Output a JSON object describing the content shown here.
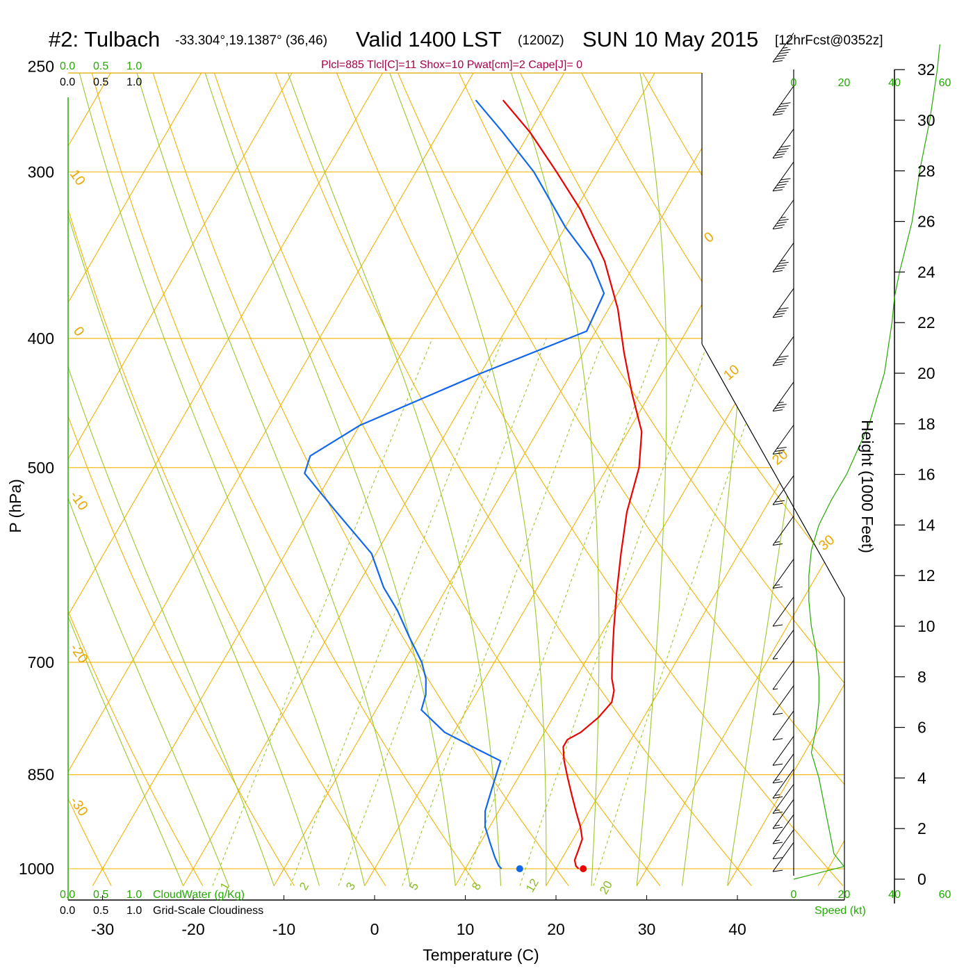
{
  "header": {
    "station": "#2: Tulbach",
    "coords": "-33.304°,19.1387° (36,46)",
    "valid": "Valid 1400 LST",
    "zulu": "(1200Z)",
    "date": "SUN 10 May 2015",
    "forecast": "[12hrFcst@0352z]",
    "parcel_info": "Plcl=885 Tlcl[C]=11 Shox=10 Pwat[cm]=2 Cape[J]= 0"
  },
  "cloud_scale": {
    "ticks": [
      "0.0",
      "0.5",
      "1.0"
    ],
    "cloudwater_label": "CloudWater (g/Kg)",
    "cloudiness_label": "Grid-Scale Cloudiness"
  },
  "axes": {
    "pressure_label": "P (hPa)",
    "temperature_label": "Temperature (C)",
    "height_label": "Height (1000 Feet)",
    "speed_label": "Speed (kt)"
  },
  "colors": {
    "temperature": "#ee0000",
    "dewpoint": "#1166ee",
    "isotherm": "#f2b200",
    "dry_adiabat": "#f2b200",
    "moist_adiabat": "#99c82a",
    "mixing_ratio": "#99c82a",
    "speed_profile": "#22aa00",
    "cloud_scale": "#22aa00"
  },
  "chart_data": {
    "type": "line",
    "title": "#2: Tulbach -33.304°,19.1387° (36,46) Valid 1400 LST (1200Z) SUN 10 May 2015 [12hrFcst@0352z]",
    "xlabel": "Temperature (C)",
    "ylabel": "P (hPa)",
    "xlim": [
      -33,
      45
    ],
    "ylim": [
      1025,
      250
    ],
    "yscale": "log",
    "x_ticks": [
      "-30",
      "-20",
      "-10",
      "0",
      "10",
      "20",
      "30",
      "40"
    ],
    "y_ticks": [
      "250",
      "300",
      "400",
      "500",
      "700",
      "850",
      "1000"
    ],
    "height_ticks": [
      "0",
      "2",
      "4",
      "6",
      "8",
      "10",
      "12",
      "14",
      "16",
      "18",
      "20",
      "22",
      "24",
      "26",
      "28",
      "30",
      "32"
    ],
    "speed_ticks": [
      "0",
      "20",
      "40",
      "60"
    ],
    "isotherm_labels": [
      "10",
      "0",
      "-10",
      "-20",
      "-30"
    ],
    "isotherm_labels_right": [
      "0",
      "10",
      "20",
      "30"
    ],
    "mixing_ratio_labels": [
      "1",
      "2",
      "3",
      "5",
      "8",
      "12",
      "20"
    ],
    "series": [
      {
        "name": "Temperature",
        "points": [
          [
            22.5,
            1000
          ],
          [
            22.0,
            995
          ],
          [
            21.5,
            985
          ],
          [
            21.3,
            970
          ],
          [
            21.0,
            950
          ],
          [
            20.0,
            930
          ],
          [
            18.5,
            905
          ],
          [
            17.0,
            880
          ],
          [
            15.5,
            855
          ],
          [
            14.0,
            830
          ],
          [
            13.0,
            810
          ],
          [
            13.0,
            800
          ],
          [
            14.0,
            790
          ],
          [
            15.0,
            770
          ],
          [
            15.5,
            750
          ],
          [
            15.0,
            735
          ],
          [
            14.0,
            720
          ],
          [
            13.0,
            700
          ],
          [
            12.0,
            680
          ],
          [
            11.0,
            660
          ],
          [
            9.0,
            620
          ],
          [
            7.0,
            580
          ],
          [
            5.0,
            540
          ],
          [
            3.5,
            500
          ],
          [
            1.5,
            470
          ],
          [
            -2.0,
            440
          ],
          [
            -5.5,
            410
          ],
          [
            -9.0,
            380
          ],
          [
            -13.5,
            350
          ],
          [
            -19.5,
            320
          ],
          [
            -24.5,
            300
          ],
          [
            -30.0,
            280
          ],
          [
            -35.0,
            265
          ]
        ]
      },
      {
        "name": "Dewpoint",
        "points": [
          [
            14.0,
            1000
          ],
          [
            13.5,
            995
          ],
          [
            12.5,
            980
          ],
          [
            11.0,
            955
          ],
          [
            9.5,
            930
          ],
          [
            8.5,
            905
          ],
          [
            8.0,
            880
          ],
          [
            7.5,
            855
          ],
          [
            7.0,
            830
          ],
          [
            4.0,
            815
          ],
          [
            -1.0,
            790
          ],
          [
            -5.0,
            760
          ],
          [
            -5.5,
            740
          ],
          [
            -6.5,
            720
          ],
          [
            -8.0,
            700
          ],
          [
            -11.0,
            670
          ],
          [
            -14.0,
            640
          ],
          [
            -17.0,
            615
          ],
          [
            -20.5,
            580
          ],
          [
            -27.0,
            540
          ],
          [
            -33.0,
            505
          ],
          [
            -33.5,
            490
          ],
          [
            -30.0,
            465
          ],
          [
            -20.0,
            425
          ],
          [
            -11.0,
            395
          ],
          [
            -11.5,
            370
          ],
          [
            -15.0,
            350
          ],
          [
            -20.0,
            330
          ],
          [
            -27.0,
            300
          ],
          [
            -33.0,
            280
          ],
          [
            -38.0,
            265
          ]
        ]
      }
    ],
    "surface_parcel": {
      "temperature": 23,
      "dewpoint": 16,
      "pressure": 1000
    },
    "wind_speed_profile_kt": [
      [
        0.0,
        0
      ],
      [
        0.5,
        20
      ],
      [
        1.0,
        16
      ],
      [
        2.0,
        14
      ],
      [
        3.0,
        12
      ],
      [
        4.0,
        10
      ],
      [
        5.0,
        7
      ],
      [
        6.0,
        9
      ],
      [
        7.0,
        10
      ],
      [
        8.0,
        10
      ],
      [
        9.0,
        9
      ],
      [
        10.0,
        7
      ],
      [
        11.0,
        6
      ],
      [
        12.0,
        6
      ],
      [
        13.0,
        7
      ],
      [
        14.0,
        10
      ],
      [
        15.0,
        15
      ],
      [
        16.0,
        21
      ],
      [
        18.0,
        30
      ],
      [
        20.0,
        36
      ],
      [
        22.0,
        39
      ],
      [
        23.0,
        40
      ],
      [
        24.0,
        42
      ],
      [
        26.0,
        47
      ],
      [
        28.0,
        50
      ],
      [
        30.0,
        54
      ],
      [
        32.0,
        57
      ],
      [
        33.0,
        58
      ]
    ],
    "wind_barbs": [
      {
        "height_kft": 32.3,
        "speed_kt": 55
      },
      {
        "height_kft": 30.2,
        "speed_kt": 50
      },
      {
        "height_kft": 28.5,
        "speed_kt": 50
      },
      {
        "height_kft": 27.2,
        "speed_kt": 50
      },
      {
        "height_kft": 25.7,
        "speed_kt": 45
      },
      {
        "height_kft": 24.0,
        "speed_kt": 45
      },
      {
        "height_kft": 22.2,
        "speed_kt": 40
      },
      {
        "height_kft": 20.3,
        "speed_kt": 40
      },
      {
        "height_kft": 18.5,
        "speed_kt": 35
      },
      {
        "height_kft": 16.8,
        "speed_kt": 30
      },
      {
        "height_kft": 14.8,
        "speed_kt": 20
      },
      {
        "height_kft": 13.2,
        "speed_kt": 15
      },
      {
        "height_kft": 11.5,
        "speed_kt": 15
      },
      {
        "height_kft": 10.0,
        "speed_kt": 10
      },
      {
        "height_kft": 8.7,
        "speed_kt": 5
      },
      {
        "height_kft": 7.5,
        "speed_kt": 5
      },
      {
        "height_kft": 6.5,
        "speed_kt": 10
      },
      {
        "height_kft": 5.5,
        "speed_kt": 10
      },
      {
        "height_kft": 4.5,
        "speed_kt": 10
      },
      {
        "height_kft": 3.8,
        "speed_kt": 15
      },
      {
        "height_kft": 3.2,
        "speed_kt": 15
      },
      {
        "height_kft": 2.6,
        "speed_kt": 15
      },
      {
        "height_kft": 2.0,
        "speed_kt": 15
      },
      {
        "height_kft": 1.4,
        "speed_kt": 15
      },
      {
        "height_kft": 0.8,
        "speed_kt": 10
      },
      {
        "height_kft": 0.3,
        "speed_kt": 10
      }
    ],
    "grid": true
  }
}
